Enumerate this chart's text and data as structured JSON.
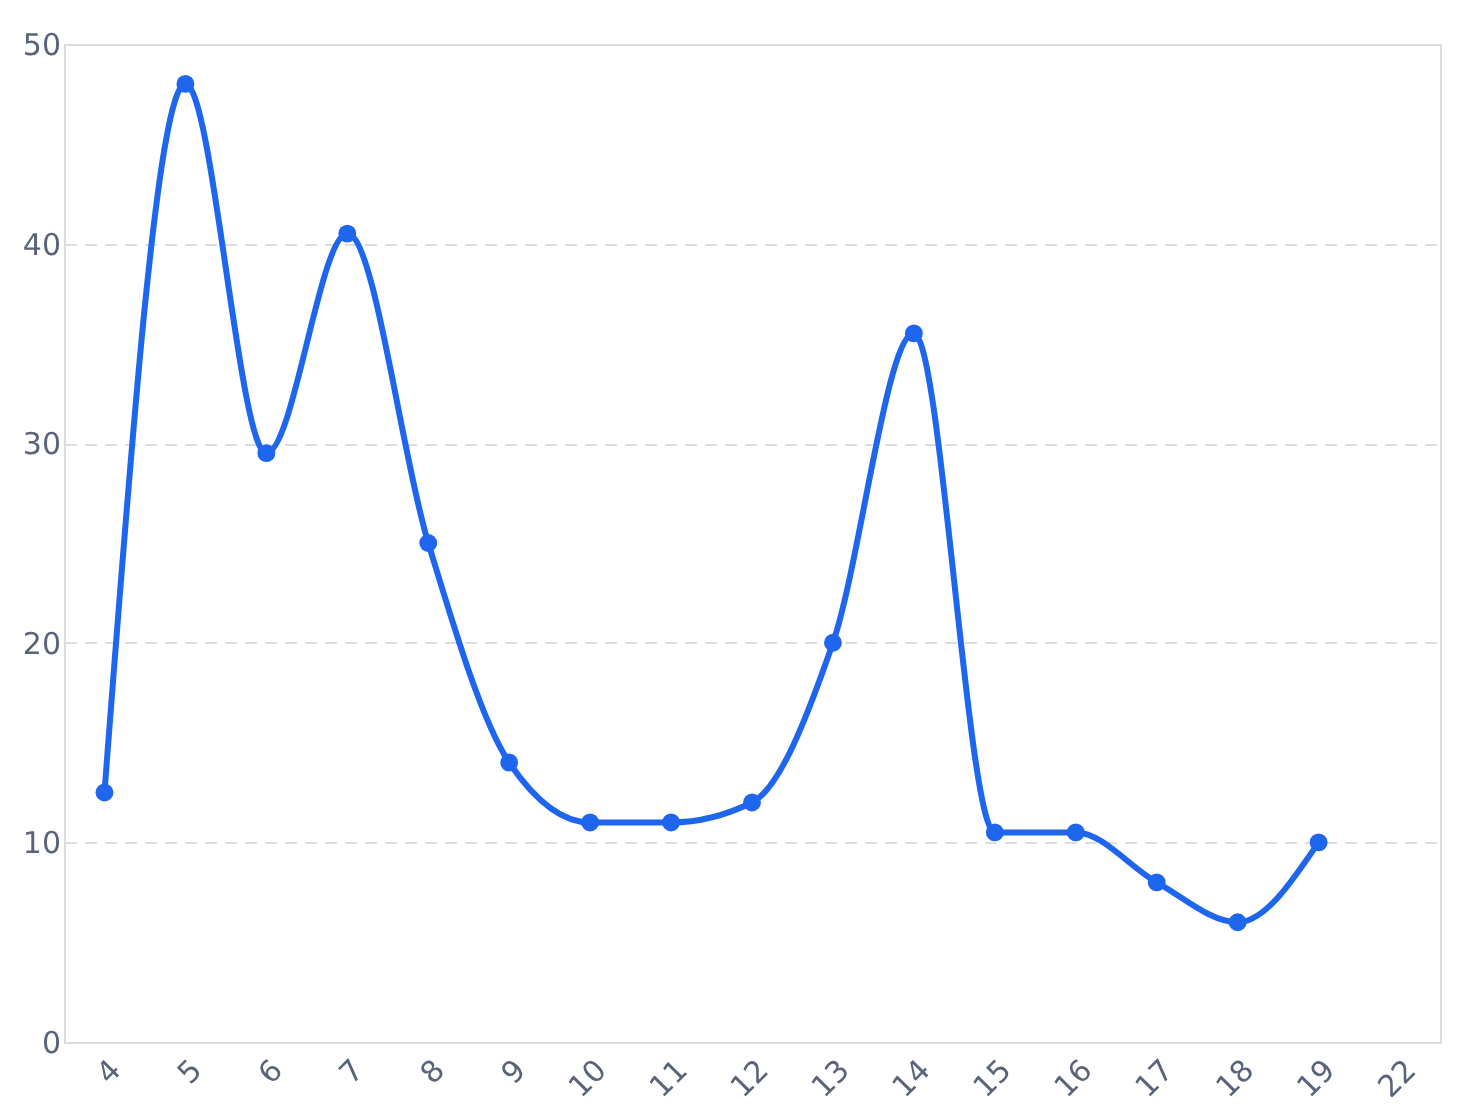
{
  "chart_data": {
    "type": "line",
    "categories": [
      "4",
      "5",
      "6",
      "7",
      "8",
      "9",
      "10",
      "11",
      "12",
      "13",
      "14",
      "15",
      "16",
      "17",
      "18",
      "19",
      "22"
    ],
    "series": [
      {
        "color": "#1f66ee",
        "values": [
          12.5,
          48,
          29.5,
          40.5,
          25,
          14,
          11,
          11,
          12,
          20,
          35.5,
          10.5,
          10.5,
          8,
          6,
          10,
          null
        ]
      }
    ],
    "ylim": [
      0,
      50
    ],
    "yticks": [
      0,
      10,
      20,
      30,
      40,
      50
    ],
    "grid": "y",
    "marker": "circle",
    "line_style": "solid"
  }
}
